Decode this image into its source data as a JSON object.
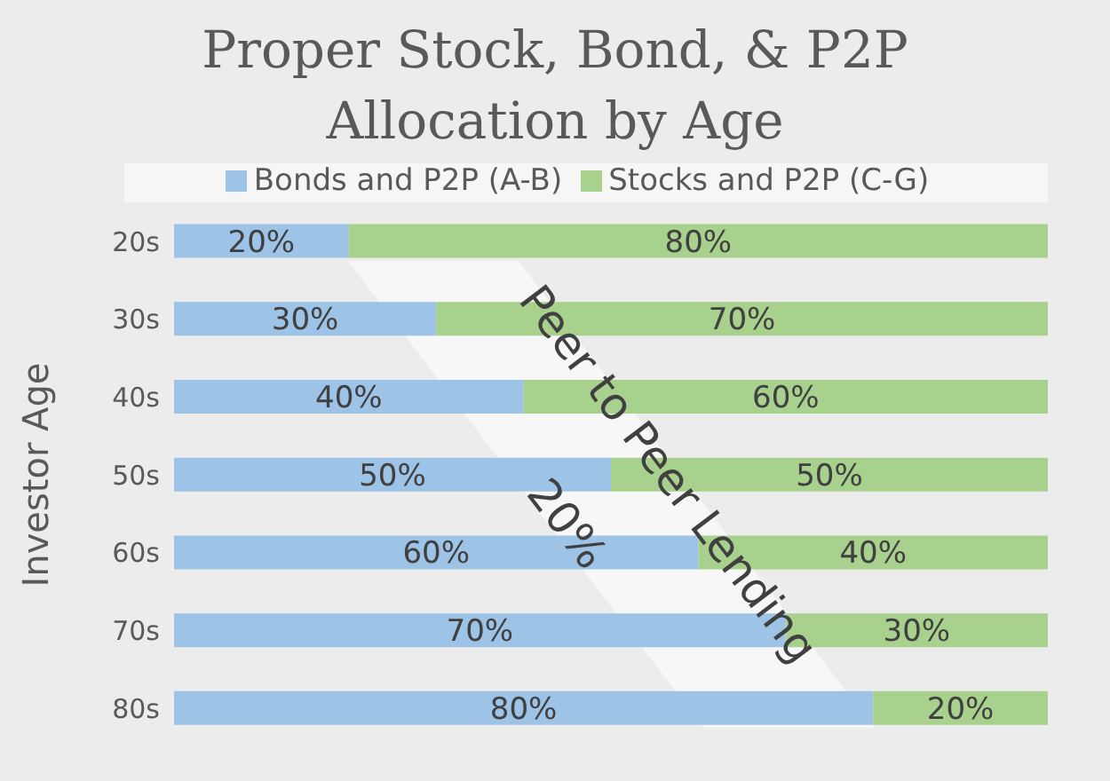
{
  "chart_data": {
    "type": "bar",
    "orientation": "horizontal",
    "stacked": true,
    "title": "Proper Stock, Bond, & P2P\nAllocation by Age",
    "ylabel": "Investor Age",
    "categories": [
      "20s",
      "30s",
      "40s",
      "50s",
      "60s",
      "70s",
      "80s"
    ],
    "series": [
      {
        "name": "Bonds and P2P (A-B)",
        "color": "#9dc3e6",
        "values": [
          20,
          30,
          40,
          50,
          60,
          70,
          80
        ],
        "value_labels": [
          "20%",
          "30%",
          "40%",
          "50%",
          "60%",
          "70%",
          "80%"
        ]
      },
      {
        "name": "Stocks and P2P (C-G)",
        "color": "#a9d18e",
        "values": [
          80,
          70,
          60,
          50,
          40,
          30,
          20
        ],
        "value_labels": [
          "80%",
          "70%",
          "60%",
          "50%",
          "40%",
          "30%",
          "20%"
        ]
      }
    ],
    "legend": "top",
    "annotations": [
      "Peer to Peer Lending",
      "20%"
    ]
  }
}
